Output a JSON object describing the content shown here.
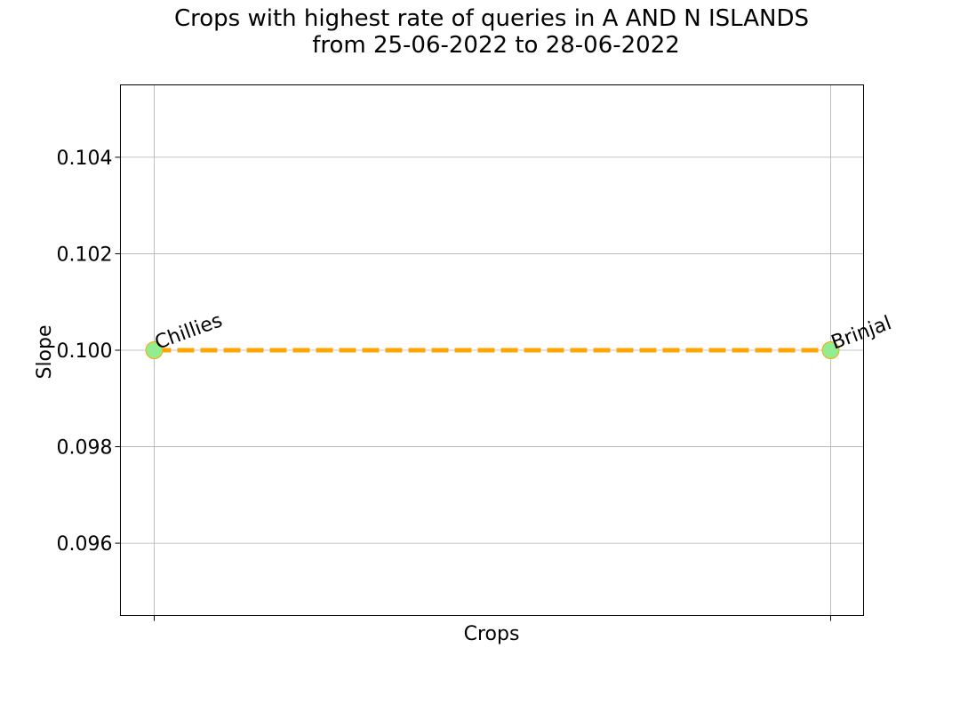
{
  "chart_data": {
    "type": "line",
    "title": [
      "Crops with highest rate of queries in A AND N ISLANDS",
      "from 25-06-2022 to 28-06-2022"
    ],
    "xlabel": "Crops",
    "ylabel": "Slope",
    "ylim": [
      0.0945,
      0.1055
    ],
    "yticks": [
      "0.096",
      "0.098",
      "0.100",
      "0.102",
      "0.104"
    ],
    "grid": true,
    "categories": [
      "Chillies",
      "Brinjal"
    ],
    "values": [
      0.1,
      0.1
    ],
    "line_color": "#ffa500",
    "marker_color": "#90ee90",
    "marker_edge_color": "#ffa500",
    "line_style": "dashed"
  }
}
